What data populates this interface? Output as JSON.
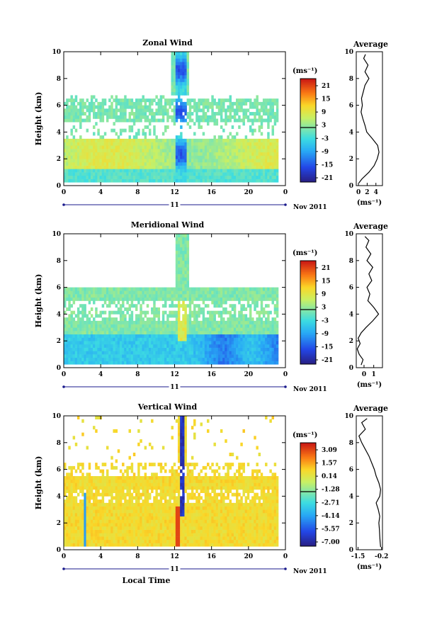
{
  "chart_data": [
    {
      "type": "heatmap",
      "title": "Zonal Wind",
      "ylabel": "Height (km)",
      "xlabel": "",
      "xlim": [
        0,
        24
      ],
      "ylim": [
        0,
        10
      ],
      "x_ticks": [
        "0",
        "4",
        "8",
        "12",
        "16",
        "20",
        "0"
      ],
      "y_ticks": [
        "0",
        "2",
        "4",
        "6",
        "8",
        "10"
      ],
      "date_axis": {
        "day": "11",
        "month_year": "Nov 2011"
      },
      "colorbar": {
        "unit": "(ms⁻¹)",
        "labels": [
          "21",
          "15",
          "9",
          "3",
          "-3",
          "-9",
          "-15",
          "-21"
        ],
        "range": [
          -24,
          24
        ]
      },
      "profile": {
        "title": "Average",
        "xlabel": "(ms⁻¹)",
        "x_ticks": [
          "0",
          "2",
          "4"
        ],
        "x_tick_values": [
          0,
          2,
          4
        ],
        "xlim": [
          -0.5,
          5.5
        ],
        "height": [
          0.2,
          0.5,
          1.0,
          1.5,
          2.0,
          2.5,
          3.0,
          3.5,
          4.0,
          4.5,
          5.0,
          5.5,
          6.0,
          6.5,
          7.0,
          7.5,
          8.0,
          8.5,
          9.0,
          9.5,
          9.8
        ],
        "value": [
          0.1,
          0.8,
          2.4,
          3.6,
          4.3,
          4.7,
          4.4,
          3.2,
          1.9,
          1.5,
          1.0,
          0.6,
          0.9,
          0.7,
          1.1,
          1.5,
          2.4,
          1.5,
          2.2,
          1.2,
          1.6
        ]
      }
    },
    {
      "type": "heatmap",
      "title": "Meridional Wind",
      "ylabel": "Height (km)",
      "xlabel": "",
      "xlim": [
        0,
        24
      ],
      "ylim": [
        0,
        10
      ],
      "x_ticks": [
        "0",
        "4",
        "8",
        "12",
        "16",
        "20",
        "0"
      ],
      "y_ticks": [
        "0",
        "2",
        "4",
        "6",
        "8",
        "10"
      ],
      "date_axis": {
        "day": "11",
        "month_year": "Nov 2011"
      },
      "colorbar": {
        "unit": "(ms⁻¹)",
        "labels": [
          "21",
          "15",
          "9",
          "3",
          "-3",
          "-9",
          "-15",
          "-21"
        ],
        "range": [
          -24,
          24
        ]
      },
      "profile": {
        "title": "Average",
        "xlabel": "(ms⁻¹)",
        "x_ticks": [
          "0",
          "1"
        ],
        "x_tick_values": [
          0,
          1
        ],
        "xlim": [
          -0.8,
          1.9
        ],
        "height": [
          0.2,
          0.6,
          1.0,
          1.4,
          1.8,
          2.2,
          2.6,
          3.0,
          3.5,
          4.0,
          4.5,
          5.0,
          5.5,
          6.0,
          6.5,
          7.0,
          7.5,
          8.0,
          8.5,
          9.0,
          9.5,
          9.8
        ],
        "value": [
          -0.3,
          -0.1,
          -0.5,
          -0.7,
          -0.4,
          -0.6,
          -0.3,
          0.2,
          0.9,
          1.5,
          1.0,
          0.4,
          0.6,
          0.3,
          0.8,
          0.5,
          0.9,
          0.3,
          0.7,
          0.2,
          0.5,
          0.1
        ]
      }
    },
    {
      "type": "heatmap",
      "title": "Vertical Wind",
      "ylabel": "Height (km)",
      "xlabel": "Local Time",
      "xlim": [
        0,
        24
      ],
      "ylim": [
        0,
        10
      ],
      "x_ticks": [
        "0",
        "4",
        "8",
        "12",
        "16",
        "20",
        "0"
      ],
      "y_ticks": [
        "0",
        "2",
        "4",
        "6",
        "8",
        "10"
      ],
      "date_axis": {
        "day": "11",
        "month_year": "Nov 2011"
      },
      "colorbar": {
        "unit": "(ms⁻¹)",
        "labels": [
          "3.09",
          "1.57",
          "0.14",
          "-1.28",
          "-2.71",
          "-4.14",
          "-5.57",
          "-7.00"
        ],
        "range": [
          -7.71,
          3.8
        ]
      },
      "profile": {
        "title": "Average",
        "xlabel": "(ms⁻¹)",
        "x_ticks": [
          "-1.5",
          "-0.2"
        ],
        "x_tick_values": [
          -1.5,
          -0.2
        ],
        "xlim": [
          -1.6,
          -0.15
        ],
        "height": [
          0.2,
          0.6,
          1.0,
          1.5,
          2.0,
          2.5,
          3.0,
          3.5,
          4.0,
          4.5,
          5.0,
          5.5,
          6.0,
          6.5,
          7.0,
          7.5,
          8.0,
          8.5,
          9.0,
          9.5,
          9.8
        ],
        "value": [
          -0.25,
          -0.28,
          -0.3,
          -0.32,
          -0.35,
          -0.3,
          -0.38,
          -0.5,
          -0.3,
          -0.25,
          -0.35,
          -0.5,
          -0.6,
          -0.75,
          -0.9,
          -1.1,
          -1.3,
          -1.45,
          -1.1,
          -1.3,
          -1.0
        ]
      }
    }
  ]
}
